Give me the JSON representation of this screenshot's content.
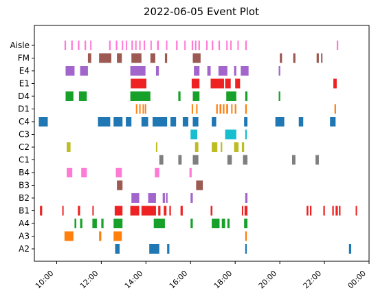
{
  "chart_data": {
    "type": "event",
    "title": "2022-06-05 Event Plot",
    "xlabel": "",
    "ylabel": "",
    "x_unit": "hour of day",
    "xlim": [
      9.0,
      24.0
    ],
    "x_ticks": [
      {
        "value": 10,
        "label": "10:00"
      },
      {
        "value": 12,
        "label": "12:00"
      },
      {
        "value": 14,
        "label": "14:00"
      },
      {
        "value": 16,
        "label": "16:00"
      },
      {
        "value": 18,
        "label": "18:00"
      },
      {
        "value": 20,
        "label": "20:00"
      },
      {
        "value": 22,
        "label": "22:00"
      },
      {
        "value": 24,
        "label": "00:00"
      }
    ],
    "grid": false,
    "legend": "none",
    "series": [
      {
        "name": "Aisle",
        "color": "#ff7ad4",
        "events": [
          [
            10.35,
            10.42
          ],
          [
            10.65,
            10.72
          ],
          [
            10.95,
            11.02
          ],
          [
            11.25,
            11.32
          ],
          [
            11.5,
            11.56
          ],
          [
            12.35,
            12.42
          ],
          [
            12.65,
            12.72
          ],
          [
            12.92,
            12.98
          ],
          [
            13.1,
            13.16
          ],
          [
            13.35,
            13.42
          ],
          [
            13.52,
            13.58
          ],
          [
            13.7,
            13.76
          ],
          [
            13.9,
            13.96
          ],
          [
            14.2,
            14.26
          ],
          [
            14.5,
            14.58
          ],
          [
            14.9,
            14.96
          ],
          [
            15.35,
            15.42
          ],
          [
            15.72,
            15.78
          ],
          [
            16.05,
            16.12
          ],
          [
            16.2,
            16.26
          ],
          [
            16.35,
            16.42
          ],
          [
            16.7,
            16.76
          ],
          [
            16.95,
            17.02
          ],
          [
            17.25,
            17.32
          ],
          [
            17.6,
            17.66
          ],
          [
            17.78,
            17.84
          ],
          [
            18.1,
            18.16
          ],
          [
            18.45,
            18.52
          ],
          [
            22.55,
            22.62
          ]
        ]
      },
      {
        "name": "FM",
        "color": "#9c5a52",
        "events": [
          [
            11.4,
            11.55
          ],
          [
            11.9,
            12.45
          ],
          [
            12.7,
            12.92
          ],
          [
            13.35,
            13.8
          ],
          [
            14.2,
            14.42
          ],
          [
            14.85,
            14.95
          ],
          [
            16.1,
            16.45
          ],
          [
            20.0,
            20.1
          ],
          [
            20.6,
            20.7
          ],
          [
            21.65,
            21.75
          ],
          [
            21.85,
            21.9
          ]
        ]
      },
      {
        "name": "E4",
        "color": "#a265cc",
        "events": [
          [
            10.4,
            10.8
          ],
          [
            11.05,
            11.4
          ],
          [
            13.3,
            13.98
          ],
          [
            14.45,
            14.58
          ],
          [
            16.15,
            16.4
          ],
          [
            16.75,
            16.9
          ],
          [
            17.25,
            17.65
          ],
          [
            17.95,
            18.05
          ],
          [
            18.25,
            18.6
          ],
          [
            19.95,
            20.02
          ]
        ]
      },
      {
        "name": "E1",
        "color": "#ee2222",
        "events": [
          [
            13.32,
            14.02
          ],
          [
            16.05,
            16.4
          ],
          [
            16.9,
            17.5
          ],
          [
            17.55,
            17.8
          ],
          [
            18.0,
            18.22
          ],
          [
            22.4,
            22.55
          ]
        ]
      },
      {
        "name": "D4",
        "color": "#18a12a",
        "events": [
          [
            10.4,
            10.75
          ],
          [
            11.0,
            11.35
          ],
          [
            13.3,
            14.2
          ],
          [
            15.45,
            15.55
          ],
          [
            16.1,
            16.4
          ],
          [
            17.6,
            18.05
          ],
          [
            18.45,
            18.55
          ],
          [
            19.95,
            20.02
          ]
        ]
      },
      {
        "name": "D1",
        "color": "#ff7f0e",
        "events": [
          [
            13.55,
            13.6
          ],
          [
            13.7,
            13.75
          ],
          [
            13.85,
            13.9
          ],
          [
            13.95,
            14.0
          ],
          [
            16.05,
            16.1
          ],
          [
            16.25,
            16.3
          ],
          [
            17.15,
            17.22
          ],
          [
            17.3,
            17.38
          ],
          [
            17.45,
            17.52
          ],
          [
            17.6,
            17.68
          ],
          [
            17.82,
            17.88
          ],
          [
            17.98,
            18.05
          ],
          [
            18.45,
            18.52
          ],
          [
            22.45,
            22.52
          ]
        ]
      },
      {
        "name": "C4",
        "color": "#1f77b4",
        "events": [
          [
            9.2,
            9.6
          ],
          [
            11.85,
            12.4
          ],
          [
            12.55,
            12.95
          ],
          [
            13.1,
            13.35
          ],
          [
            13.8,
            14.1
          ],
          [
            14.3,
            14.95
          ],
          [
            15.1,
            15.35
          ],
          [
            15.65,
            15.9
          ],
          [
            16.1,
            16.35
          ],
          [
            16.95,
            17.15
          ],
          [
            18.4,
            18.55
          ],
          [
            19.8,
            20.2
          ],
          [
            20.85,
            21.05
          ],
          [
            22.25,
            22.5
          ]
        ]
      },
      {
        "name": "C3",
        "color": "#17becf",
        "events": [
          [
            16.0,
            16.3
          ],
          [
            17.55,
            18.05
          ],
          [
            18.45,
            18.52
          ]
        ]
      },
      {
        "name": "C2",
        "color": "#bcbd22",
        "events": [
          [
            10.45,
            10.62
          ],
          [
            14.45,
            14.5
          ],
          [
            16.2,
            16.35
          ],
          [
            16.95,
            17.2
          ],
          [
            17.35,
            17.42
          ],
          [
            17.95,
            18.15
          ],
          [
            18.3,
            18.4
          ]
        ]
      },
      {
        "name": "C1",
        "color": "#7f7f7f",
        "events": [
          [
            14.6,
            14.78
          ],
          [
            15.45,
            15.6
          ],
          [
            16.1,
            16.35
          ],
          [
            17.65,
            17.85
          ],
          [
            18.35,
            18.55
          ],
          [
            20.55,
            20.7
          ],
          [
            21.6,
            21.75
          ]
        ]
      },
      {
        "name": "B4",
        "color": "#ff7ad4",
        "events": [
          [
            10.45,
            10.7
          ],
          [
            11.1,
            11.35
          ],
          [
            12.65,
            12.92
          ],
          [
            14.4,
            14.6
          ],
          [
            15.95,
            16.05
          ]
        ]
      },
      {
        "name": "B3",
        "color": "#9c5a52",
        "events": [
          [
            12.7,
            12.95
          ],
          [
            16.25,
            16.55
          ]
        ]
      },
      {
        "name": "B2",
        "color": "#a265cc",
        "events": [
          [
            13.35,
            13.7
          ],
          [
            14.1,
            14.45
          ],
          [
            14.75,
            14.85
          ],
          [
            14.9,
            14.97
          ],
          [
            16.0,
            16.1
          ],
          [
            18.45,
            18.55
          ]
        ]
      },
      {
        "name": "B1",
        "color": "#ee2222",
        "events": [
          [
            9.25,
            9.35
          ],
          [
            10.25,
            10.3
          ],
          [
            10.95,
            11.05
          ],
          [
            11.6,
            11.65
          ],
          [
            12.6,
            12.95
          ],
          [
            13.3,
            13.7
          ],
          [
            13.8,
            14.45
          ],
          [
            14.55,
            14.65
          ],
          [
            14.8,
            14.92
          ],
          [
            15.05,
            15.12
          ],
          [
            15.55,
            15.65
          ],
          [
            16.9,
            16.98
          ],
          [
            18.3,
            18.35
          ],
          [
            18.42,
            18.55
          ],
          [
            21.2,
            21.28
          ],
          [
            21.35,
            21.42
          ],
          [
            21.95,
            22.02
          ],
          [
            22.35,
            22.42
          ],
          [
            22.5,
            22.6
          ],
          [
            22.65,
            22.72
          ],
          [
            23.4,
            23.46
          ]
        ]
      },
      {
        "name": "A4",
        "color": "#18a12a",
        "events": [
          [
            10.8,
            10.88
          ],
          [
            11.05,
            11.15
          ],
          [
            11.6,
            11.8
          ],
          [
            12.0,
            12.1
          ],
          [
            12.55,
            12.95
          ],
          [
            14.35,
            14.85
          ],
          [
            16.0,
            16.1
          ],
          [
            16.95,
            17.3
          ],
          [
            17.4,
            17.55
          ],
          [
            17.65,
            17.75
          ],
          [
            18.4,
            18.55
          ]
        ]
      },
      {
        "name": "A3",
        "color": "#ff7f0e",
        "events": [
          [
            10.35,
            10.75
          ],
          [
            11.9,
            12.0
          ],
          [
            12.55,
            12.92
          ],
          [
            18.45,
            18.52
          ]
        ]
      },
      {
        "name": "A2",
        "color": "#1f77b4",
        "events": [
          [
            12.62,
            12.82
          ],
          [
            14.15,
            14.6
          ],
          [
            14.95,
            15.05
          ],
          [
            18.45,
            18.52
          ],
          [
            23.1,
            23.2
          ]
        ]
      }
    ]
  }
}
